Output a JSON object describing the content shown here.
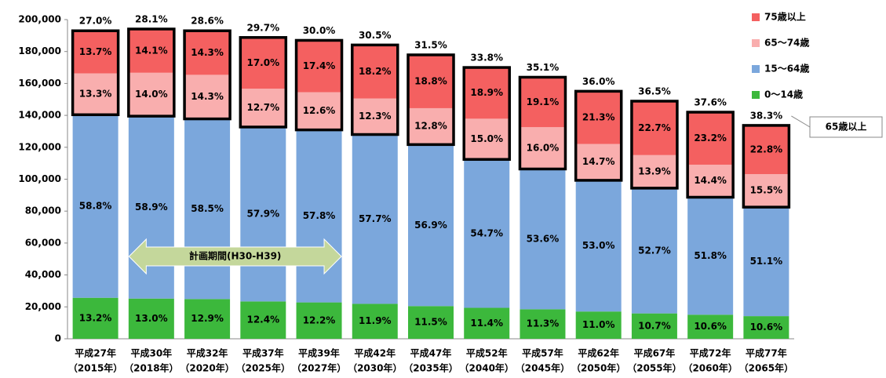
{
  "chart_data": {
    "type": "stacked-bar",
    "categories": [
      [
        "平成27年",
        "（2015年）"
      ],
      [
        "平成30年",
        "（2018年）"
      ],
      [
        "平成32年",
        "（2020年）"
      ],
      [
        "平成37年",
        "（2025年）"
      ],
      [
        "平成39年",
        "（2027年）"
      ],
      [
        "平成42年",
        "（2030年）"
      ],
      [
        "平成47年",
        "（2035年）"
      ],
      [
        "平成52年",
        "（2040年）"
      ],
      [
        "平成57年",
        "（2045年）"
      ],
      [
        "平成62年",
        "（2050年）"
      ],
      [
        "平成67年",
        "（2055年）"
      ],
      [
        "平成72年",
        "（2060年）"
      ],
      [
        "平成77年",
        "（2065年）"
      ]
    ],
    "series": [
      {
        "name": "0～14歳",
        "color": "#3cb83c",
        "values": [
          25700,
          25200,
          24900,
          23400,
          22800,
          21900,
          20500,
          19400,
          18500,
          17100,
          15900,
          15100,
          14200
        ],
        "labels": [
          "13.2%",
          "13.0%",
          "12.9%",
          "12.4%",
          "12.2%",
          "11.9%",
          "11.5%",
          "11.4%",
          "11.3%",
          "11.0%",
          "10.7%",
          "10.6%",
          "10.6%"
        ]
      },
      {
        "name": "15～64歳",
        "color": "#7ba7dc",
        "values": [
          114700,
          114300,
          112900,
          109300,
          108100,
          106100,
          101200,
          93000,
          87900,
          82200,
          78500,
          73600,
          68300
        ],
        "labels": [
          "58.8%",
          "58.9%",
          "58.5%",
          "57.9%",
          "57.8%",
          "57.7%",
          "56.9%",
          "54.7%",
          "53.6%",
          "53.0%",
          "52.7%",
          "51.8%",
          "51.1%"
        ]
      },
      {
        "name": "65～74歳",
        "color": "#f9aeae",
        "values": [
          25900,
          27200,
          27600,
          24000,
          23600,
          22600,
          22800,
          25500,
          26200,
          22800,
          20700,
          20400,
          20700
        ],
        "labels": [
          "13.3%",
          "14.0%",
          "14.3%",
          "12.7%",
          "12.6%",
          "12.3%",
          "12.8%",
          "15.0%",
          "16.0%",
          "14.7%",
          "13.9%",
          "14.4%",
          "15.5%"
        ]
      },
      {
        "name": "75歳以上",
        "color": "#f46060",
        "values": [
          26700,
          27400,
          27600,
          32100,
          32500,
          33500,
          33400,
          32100,
          31300,
          33000,
          33800,
          32900,
          30500
        ],
        "labels": [
          "13.7%",
          "14.1%",
          "14.3%",
          "17.0%",
          "17.4%",
          "18.2%",
          "18.8%",
          "18.9%",
          "19.1%",
          "21.3%",
          "22.7%",
          "23.2%",
          "22.8%"
        ]
      }
    ],
    "elderly_share_labels": [
      "27.0%",
      "28.1%",
      "28.6%",
      "29.7%",
      "30.0%",
      "30.5%",
      "31.5%",
      "33.8%",
      "35.1%",
      "36.0%",
      "36.5%",
      "37.6%",
      "38.3%"
    ],
    "elderly_callout": "65歳以上",
    "period_annotation": "計画期間(H30-H39)",
    "ylim": [
      0,
      200000
    ],
    "yticks": [
      0,
      {
        "value": 20000,
        "label": "20,000"
      },
      {
        "value": 40000,
        "label": "40,000"
      },
      {
        "value": 60000,
        "label": "60,000"
      },
      {
        "value": 80000,
        "label": "80,000"
      },
      {
        "value": 100000,
        "label": "100,000"
      },
      {
        "value": 120000,
        "label": "120,000"
      },
      {
        "value": 140000,
        "label": "140,000"
      },
      {
        "value": 160000,
        "label": "160,000"
      },
      {
        "value": 180000,
        "label": "180,000"
      },
      {
        "value": 200000,
        "label": "200,000"
      }
    ],
    "legend": "top-right"
  }
}
